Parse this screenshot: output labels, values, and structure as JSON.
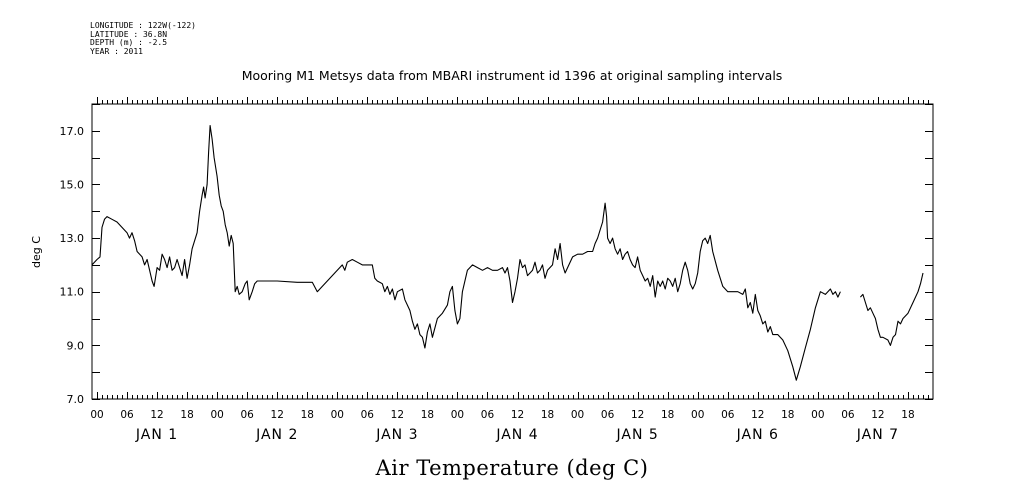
{
  "header": {
    "longitude": "LONGITUDE : 122W(-122)",
    "latitude": "LATITUDE : 36.8N",
    "depth": "DEPTH (m) : -2.5",
    "year": "YEAR : 2011"
  },
  "chart_data": {
    "type": "line",
    "title": "Mooring M1 Metsys data from MBARI instrument id 1396 at original sampling intervals",
    "xlabel": "Air Temperature (deg C)",
    "ylabel": "deg C",
    "ylim": [
      7.0,
      18.0
    ],
    "y_tick_labels": [
      "7.0",
      "9.0",
      "11.0",
      "13.0",
      "15.0",
      "17.0"
    ],
    "x_unit": "hours since JAN 1 00",
    "xlim": [
      -1,
      167
    ],
    "x_tick_labels": [
      "00",
      "06",
      "12",
      "18",
      "00",
      "06",
      "12",
      "18",
      "00",
      "06",
      "12",
      "18",
      "00",
      "06",
      "12",
      "18",
      "00",
      "06",
      "12",
      "18",
      "00",
      "06",
      "12",
      "18",
      "00",
      "06",
      "12",
      "18"
    ],
    "day_labels": [
      "JAN 1",
      "JAN 2",
      "JAN 3",
      "JAN 4",
      "JAN 5",
      "JAN 6",
      "JAN 7"
    ],
    "series": [
      {
        "segments": [
          [
            [
              -1,
              12.0
            ],
            [
              0,
              12.2
            ],
            [
              0.6,
              12.3
            ],
            [
              1,
              13.4
            ],
            [
              1.5,
              13.7
            ],
            [
              2,
              13.8
            ],
            [
              3,
              13.7
            ],
            [
              4,
              13.6
            ],
            [
              5,
              13.4
            ],
            [
              6,
              13.2
            ],
            [
              6.5,
              13.0
            ],
            [
              7,
              13.2
            ],
            [
              7.5,
              12.9
            ],
            [
              8,
              12.5
            ],
            [
              9,
              12.3
            ],
            [
              9.5,
              12.0
            ],
            [
              10,
              12.2
            ],
            [
              10.5,
              11.8
            ],
            [
              11,
              11.4
            ],
            [
              11.4,
              11.2
            ],
            [
              12,
              11.9
            ],
            [
              12.5,
              11.8
            ],
            [
              13,
              12.4
            ],
            [
              13.5,
              12.2
            ],
            [
              14,
              11.9
            ],
            [
              14.5,
              12.3
            ],
            [
              15,
              11.8
            ],
            [
              15.5,
              11.9
            ],
            [
              16,
              12.2
            ],
            [
              16.5,
              11.9
            ],
            [
              17,
              11.6
            ],
            [
              17.5,
              12.2
            ],
            [
              18,
              11.5
            ],
            [
              18.5,
              12.0
            ],
            [
              19,
              12.6
            ],
            [
              20,
              13.2
            ],
            [
              20.5,
              14.0
            ],
            [
              21,
              14.6
            ],
            [
              21.3,
              14.9
            ],
            [
              21.6,
              14.5
            ],
            [
              22,
              15.0
            ],
            [
              22.3,
              16.2
            ],
            [
              22.6,
              17.2
            ],
            [
              23,
              16.7
            ],
            [
              23.4,
              16.0
            ],
            [
              24,
              15.3
            ],
            [
              24.4,
              14.6
            ],
            [
              24.8,
              14.2
            ],
            [
              25.2,
              14.0
            ],
            [
              25.6,
              13.5
            ],
            [
              26,
              13.2
            ],
            [
              26.4,
              12.7
            ],
            [
              26.8,
              13.1
            ],
            [
              27.2,
              12.8
            ],
            [
              27.6,
              11.0
            ],
            [
              28,
              11.2
            ],
            [
              28.4,
              10.9
            ],
            [
              29,
              11.0
            ],
            [
              29.6,
              11.3
            ],
            [
              30,
              11.4
            ],
            [
              30.4,
              10.7
            ],
            [
              31,
              11.0
            ],
            [
              31.5,
              11.3
            ],
            [
              32,
              11.4
            ],
            [
              36,
              11.4
            ],
            [
              40,
              11.35
            ],
            [
              43,
              11.35
            ],
            [
              44,
              11.0
            ],
            [
              45,
              11.2
            ],
            [
              46,
              11.4
            ],
            [
              47,
              11.6
            ],
            [
              48,
              11.8
            ],
            [
              49,
              12.0
            ],
            [
              49.5,
              11.8
            ],
            [
              50,
              12.1
            ],
            [
              51,
              12.2
            ],
            [
              52,
              12.1
            ],
            [
              53,
              12.0
            ],
            [
              54,
              12.0
            ],
            [
              55,
              12.0
            ],
            [
              55.5,
              11.5
            ],
            [
              56,
              11.4
            ],
            [
              57,
              11.3
            ],
            [
              57.5,
              11.0
            ],
            [
              58,
              11.2
            ],
            [
              58.5,
              10.9
            ],
            [
              59,
              11.1
            ],
            [
              59.5,
              10.7
            ],
            [
              60,
              11.0
            ],
            [
              61,
              11.1
            ],
            [
              61.5,
              10.7
            ],
            [
              62,
              10.5
            ],
            [
              62.5,
              10.3
            ],
            [
              63,
              9.9
            ],
            [
              63.5,
              9.6
            ],
            [
              64,
              9.8
            ],
            [
              64.5,
              9.4
            ],
            [
              65,
              9.3
            ],
            [
              65.5,
              8.9
            ],
            [
              66,
              9.5
            ],
            [
              66.5,
              9.8
            ],
            [
              67,
              9.3
            ],
            [
              68,
              10.0
            ],
            [
              69,
              10.2
            ],
            [
              70,
              10.5
            ],
            [
              70.5,
              11.0
            ],
            [
              71,
              11.2
            ],
            [
              71.5,
              10.3
            ],
            [
              72,
              9.8
            ],
            [
              72.5,
              10.0
            ],
            [
              73,
              11.0
            ],
            [
              74,
              11.8
            ],
            [
              75,
              12.0
            ],
            [
              76,
              11.9
            ],
            [
              77,
              11.8
            ],
            [
              78,
              11.9
            ],
            [
              79,
              11.8
            ],
            [
              80,
              11.8
            ],
            [
              81,
              11.9
            ],
            [
              81.5,
              11.7
            ],
            [
              82,
              11.9
            ],
            [
              82.5,
              11.4
            ],
            [
              83,
              10.6
            ],
            [
              83.5,
              11.0
            ],
            [
              84,
              11.5
            ],
            [
              84.5,
              12.2
            ],
            [
              85,
              11.9
            ],
            [
              85.5,
              12.0
            ],
            [
              86,
              11.6
            ],
            [
              86.5,
              11.7
            ],
            [
              87,
              11.8
            ],
            [
              87.5,
              12.1
            ],
            [
              88,
              11.7
            ],
            [
              88.5,
              11.8
            ],
            [
              89,
              12.0
            ],
            [
              89.5,
              11.5
            ],
            [
              90,
              11.8
            ],
            [
              91,
              12.0
            ],
            [
              91.5,
              12.6
            ],
            [
              92,
              12.2
            ],
            [
              92.5,
              12.8
            ],
            [
              93,
              12.0
            ],
            [
              93.5,
              11.7
            ],
            [
              94,
              11.9
            ],
            [
              95,
              12.3
            ],
            [
              96,
              12.4
            ],
            [
              97,
              12.4
            ],
            [
              98,
              12.5
            ],
            [
              99,
              12.5
            ],
            [
              99.5,
              12.8
            ],
            [
              100,
              13.0
            ],
            [
              100.5,
              13.3
            ],
            [
              101,
              13.6
            ],
            [
              101.5,
              14.3
            ],
            [
              101.8,
              13.8
            ],
            [
              102,
              13.0
            ],
            [
              102.5,
              12.8
            ],
            [
              103,
              13.0
            ],
            [
              103.5,
              12.6
            ],
            [
              104,
              12.4
            ],
            [
              104.5,
              12.6
            ],
            [
              105,
              12.2
            ],
            [
              105.5,
              12.4
            ],
            [
              106,
              12.5
            ],
            [
              106.5,
              12.2
            ],
            [
              107,
              12.0
            ],
            [
              107.5,
              11.9
            ],
            [
              108,
              12.3
            ],
            [
              108.5,
              11.8
            ],
            [
              109,
              11.6
            ],
            [
              109.5,
              11.4
            ],
            [
              110,
              11.5
            ],
            [
              110.5,
              11.2
            ],
            [
              111,
              11.6
            ],
            [
              111.5,
              10.8
            ],
            [
              112,
              11.4
            ],
            [
              112.5,
              11.2
            ],
            [
              113,
              11.4
            ],
            [
              113.5,
              11.1
            ],
            [
              114,
              11.5
            ],
            [
              114.5,
              11.4
            ],
            [
              115,
              11.2
            ],
            [
              115.5,
              11.5
            ],
            [
              116,
              11.0
            ],
            [
              116.5,
              11.3
            ],
            [
              117,
              11.8
            ],
            [
              117.5,
              12.1
            ],
            [
              118,
              11.8
            ],
            [
              118.5,
              11.3
            ],
            [
              119,
              11.1
            ],
            [
              119.5,
              11.3
            ],
            [
              120,
              11.7
            ],
            [
              120.5,
              12.5
            ],
            [
              121,
              12.9
            ],
            [
              121.5,
              13.0
            ],
            [
              122,
              12.8
            ],
            [
              122.5,
              13.1
            ],
            [
              123,
              12.5
            ],
            [
              124,
              11.8
            ],
            [
              125,
              11.2
            ],
            [
              126,
              11.0
            ],
            [
              127,
              11.0
            ],
            [
              128,
              11.0
            ],
            [
              129,
              10.9
            ],
            [
              129.5,
              11.1
            ],
            [
              130,
              10.4
            ],
            [
              130.5,
              10.6
            ],
            [
              131,
              10.2
            ],
            [
              131.5,
              10.9
            ],
            [
              132,
              10.3
            ],
            [
              132.5,
              10.1
            ],
            [
              133,
              9.8
            ],
            [
              133.5,
              9.9
            ],
            [
              134,
              9.5
            ],
            [
              134.5,
              9.7
            ],
            [
              135,
              9.4
            ],
            [
              136,
              9.4
            ],
            [
              137,
              9.2
            ],
            [
              138,
              8.8
            ],
            [
              139,
              8.2
            ],
            [
              139.7,
              7.7
            ],
            [
              140.5,
              8.2
            ],
            [
              141.5,
              8.9
            ],
            [
              142.5,
              9.6
            ],
            [
              143.5,
              10.4
            ],
            [
              144.5,
              11.0
            ],
            [
              145.5,
              10.9
            ],
            [
              146.5,
              11.1
            ],
            [
              147,
              10.9
            ],
            [
              147.5,
              11.0
            ],
            [
              148,
              10.8
            ],
            [
              148.5,
              11.0
            ]
          ],
          [
            [
              152.5,
              10.8
            ],
            [
              153,
              10.9
            ],
            [
              153.5,
              10.6
            ],
            [
              154,
              10.3
            ],
            [
              154.5,
              10.4
            ],
            [
              155,
              10.2
            ],
            [
              155.5,
              10.0
            ],
            [
              156,
              9.6
            ],
            [
              156.5,
              9.3
            ],
            [
              157,
              9.3
            ],
            [
              158,
              9.2
            ],
            [
              158.5,
              9.0
            ],
            [
              159,
              9.3
            ],
            [
              159.5,
              9.4
            ],
            [
              160,
              9.9
            ],
            [
              160.5,
              9.8
            ],
            [
              161,
              10.0
            ],
            [
              162,
              10.2
            ],
            [
              163,
              10.6
            ],
            [
              164,
              11.0
            ],
            [
              164.5,
              11.3
            ],
            [
              165,
              11.7
            ]
          ]
        ]
      }
    ]
  }
}
